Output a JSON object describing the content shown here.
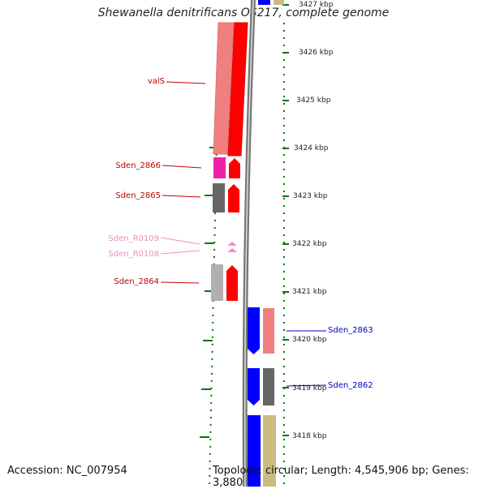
{
  "title": "Shewanella denitrificans OS217, complete genome",
  "accession_text": "Accession: NC_007954",
  "summary_text": "Topology: circular; Length: 4,545,906 bp; Genes: 3,880",
  "tick_labels": [
    "3427 kbp",
    "3426 kbp",
    "3425 kbp",
    "3424 kbp",
    "3423 kbp",
    "3422 kbp",
    "3421 kbp",
    "3420 kbp",
    "3419 kbp",
    "3418 kbp"
  ],
  "colors": {
    "forward_cds": "#ff0000",
    "reverse_cds": "#0000ff",
    "trna": "#f58cc4",
    "label_red": "#c00000",
    "label_blue": "#0000c0",
    "label_pink": "#f08cc0",
    "tick_green": "#007700",
    "cog_salmon": "#f08080",
    "cog_magenta": "#ee22aa",
    "cog_darkgray": "#666666",
    "cog_lightgray": "#b0b0b0",
    "cog_khaki": "#c8bc80"
  },
  "genes": [
    {
      "label": "valS",
      "strand": "forward"
    },
    {
      "label": "Sden_2866",
      "strand": "forward"
    },
    {
      "label": "Sden_2865",
      "strand": "forward"
    },
    {
      "label": "Sden_R0109",
      "strand": "forward",
      "type": "tRNA"
    },
    {
      "label": "Sden_R0108",
      "strand": "forward",
      "type": "tRNA"
    },
    {
      "label": "Sden_2864",
      "strand": "forward"
    },
    {
      "label": "Sden_2863",
      "strand": "reverse"
    },
    {
      "label": "Sden_2862",
      "strand": "reverse"
    }
  ]
}
